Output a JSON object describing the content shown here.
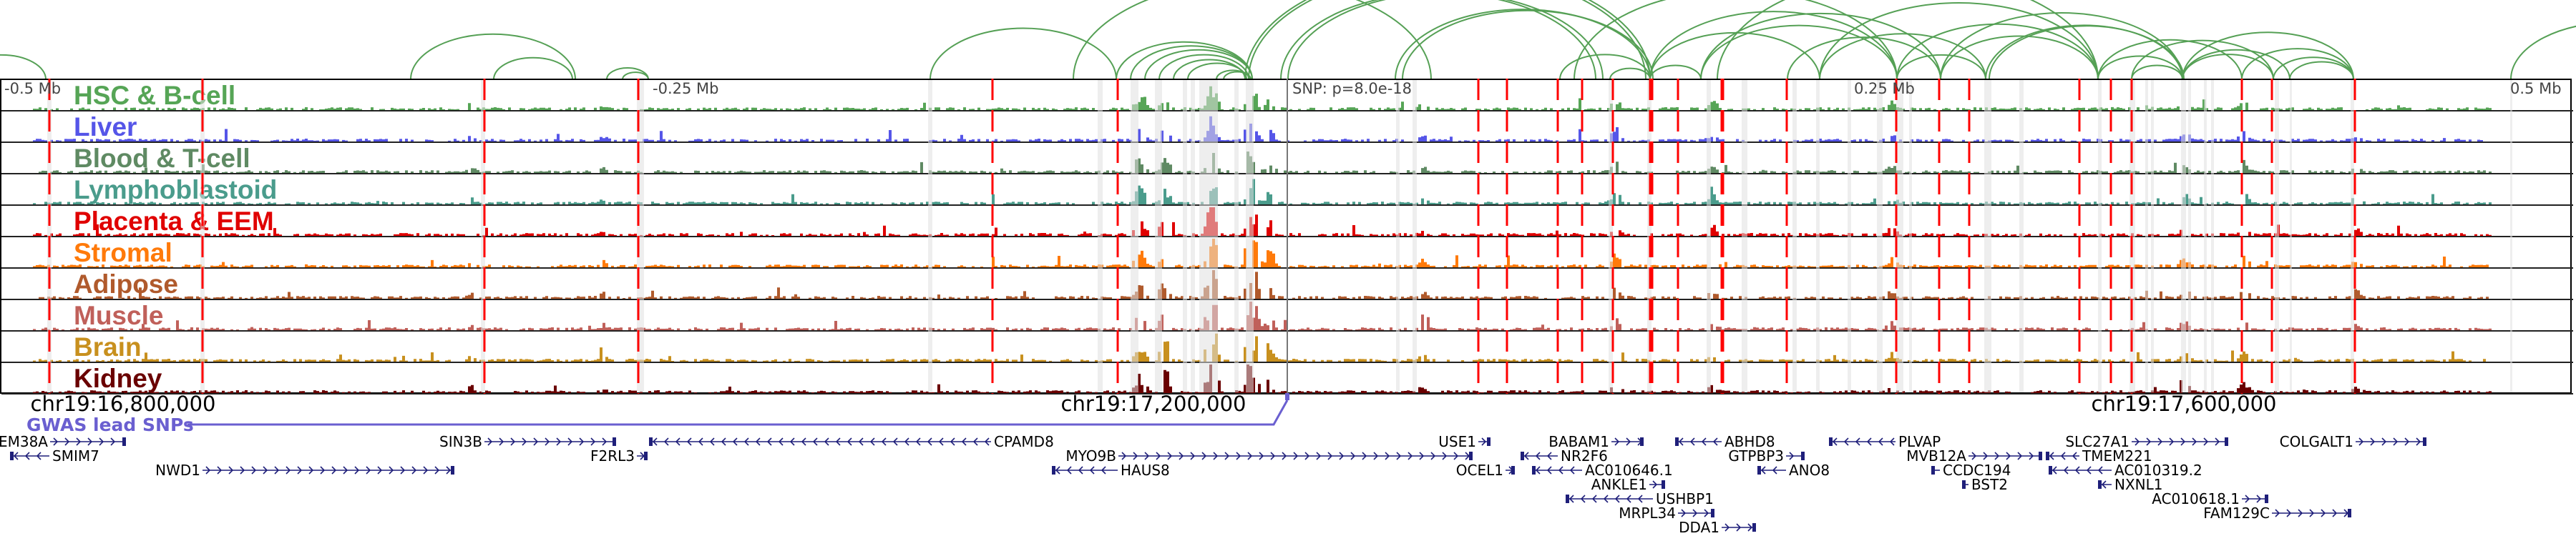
{
  "axis_labels": {
    "minus_half": "-0.5 Mb",
    "minus_quarter": "-0.25 Mb",
    "snp": "SNP: p=8.0e-18",
    "plus_quarter": "0.25 Mb",
    "plus_half": "0.5 Mb"
  },
  "tracks": [
    {
      "name": "HSC & B-cell",
      "color": "#56a556"
    },
    {
      "name": "Liver",
      "color": "#5555e8"
    },
    {
      "name": "Blood & T-cell",
      "color": "#5f8a63"
    },
    {
      "name": "Lymphoblastoid",
      "color": "#4a9c8c"
    },
    {
      "name": "Placenta & EEM",
      "color": "#e00000"
    },
    {
      "name": "Stromal",
      "color": "#ff7a0a"
    },
    {
      "name": "Adipose",
      "color": "#b05a2c"
    },
    {
      "name": "Muscle",
      "color": "#c0605a"
    },
    {
      "name": "Brain",
      "color": "#c8901e"
    },
    {
      "name": "Kidney",
      "color": "#6a0000"
    }
  ],
  "coordinates": [
    "chr19:16,800,000",
    "chr19:17,200,000",
    "chr19:17,600,000"
  ],
  "gwas_label": "GWAS lead SNPs",
  "colors": {
    "arc": "#55a055",
    "highlight": "#ff0000",
    "band": "#e0e0e0",
    "gene": "#1f1f7a",
    "gwas": "#6a5fd0"
  },
  "genes": [
    "EM38A",
    "SMIM7",
    "NWD1",
    "SIN3B",
    "F2RL3",
    "CPAMD8",
    "MYO9B",
    "HAUS8",
    "USE1",
    "OCEL1",
    "BABAM1",
    "NR2F6",
    "AC010646.1",
    "ANKLE1",
    "USHBP1",
    "MRPL34",
    "DDA1",
    "ABHD8",
    "GTPBP3",
    "ANO8",
    "PLVAP",
    "MVB12A",
    "CCDC194",
    "BST2",
    "SLC27A1",
    "TMEM221",
    "AC010319.2",
    "NXNL1",
    "AC010618.1",
    "FAM129C",
    "COLGALT1"
  ]
}
